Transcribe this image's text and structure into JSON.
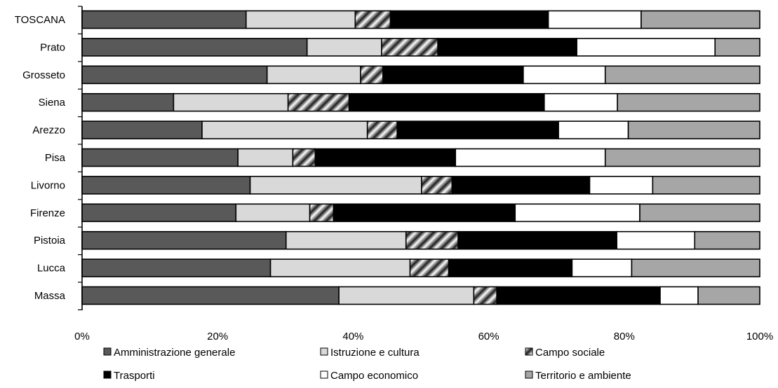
{
  "chart_data": {
    "type": "bar",
    "orientation": "horizontal",
    "stacked": "percent",
    "categories": [
      "TOSCANA",
      "Prato",
      "Grosseto",
      "Siena",
      "Arezzo",
      "Pisa",
      "Livorno",
      "Firenze",
      "Pistoia",
      "Lucca",
      "Massa"
    ],
    "series": [
      {
        "name": "Amministrazione generale",
        "color": "#595959",
        "pattern": "solid",
        "values": [
          24.2,
          33.2,
          27.3,
          13.5,
          17.7,
          23.0,
          24.8,
          22.7,
          30.1,
          27.8,
          37.9
        ]
      },
      {
        "name": "Istruzione e cultura",
        "color": "#d9d9d9",
        "pattern": "solid",
        "values": [
          16.1,
          11.0,
          13.8,
          16.9,
          24.4,
          8.1,
          25.3,
          10.9,
          17.7,
          20.6,
          19.9
        ]
      },
      {
        "name": "Campo sociale",
        "color": "#1a1a1a",
        "pattern": "diagonal-gradient-stripes",
        "values": [
          5.2,
          8.3,
          3.3,
          9.0,
          4.4,
          3.3,
          4.5,
          3.5,
          7.7,
          5.7,
          3.4
        ]
      },
      {
        "name": "Trasporti",
        "color": "#000000",
        "pattern": "solid",
        "values": [
          23.3,
          20.5,
          20.7,
          28.8,
          23.8,
          20.7,
          20.3,
          26.8,
          23.4,
          18.2,
          24.1
        ]
      },
      {
        "name": "Campo economico",
        "color": "#ffffff",
        "pattern": "solid",
        "values": [
          13.7,
          20.4,
          12.1,
          10.8,
          10.3,
          22.1,
          9.3,
          18.4,
          11.5,
          8.8,
          5.6
        ]
      },
      {
        "name": "Territorio e ambiente",
        "color": "#a6a6a6",
        "pattern": "solid",
        "values": [
          17.5,
          6.6,
          22.8,
          21.0,
          19.4,
          22.8,
          15.8,
          17.7,
          9.6,
          18.9,
          9.1
        ]
      }
    ],
    "x_ticks": [
      "0%",
      "20%",
      "40%",
      "60%",
      "80%",
      "100%"
    ],
    "xlim": [
      0,
      100
    ],
    "xlabel": "",
    "ylabel": "",
    "title": "",
    "grid": false,
    "legend_position": "bottom"
  }
}
